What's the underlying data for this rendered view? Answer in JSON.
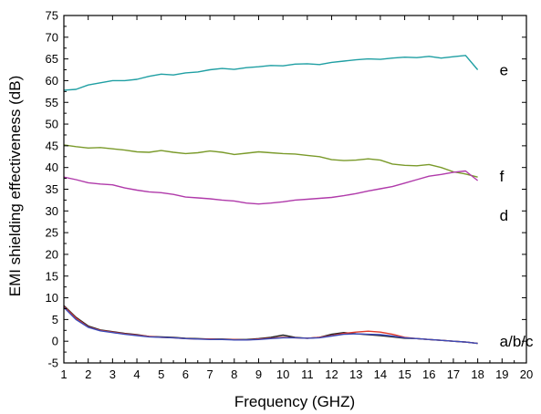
{
  "chart_data": {
    "type": "line",
    "xlabel": "Frequency (GHZ)",
    "ylabel": "EMI shielding effectiveness (dB)",
    "xlim": [
      1,
      20
    ],
    "ylim": [
      -5,
      75
    ],
    "xticks": [
      1,
      2,
      3,
      4,
      5,
      6,
      7,
      8,
      9,
      10,
      11,
      12,
      13,
      14,
      15,
      16,
      17,
      18,
      19,
      20
    ],
    "yticks": [
      -5,
      0,
      5,
      10,
      15,
      20,
      25,
      30,
      35,
      40,
      45,
      50,
      55,
      60,
      65,
      70,
      75
    ],
    "grid": false,
    "colors": {
      "e": "#1f9fa3",
      "f": "#7a9a2a",
      "d": "#b03aaa",
      "a": "#202020",
      "b": "#e03a2a",
      "c": "#3a4ab8"
    },
    "series": [
      {
        "name": "e",
        "x": [
          1,
          1.5,
          2,
          2.5,
          3,
          3.5,
          4,
          4.5,
          5,
          5.5,
          6,
          6.5,
          7,
          7.5,
          8,
          8.5,
          9,
          9.5,
          10,
          10.5,
          11,
          11.5,
          12,
          12.5,
          13,
          13.5,
          14,
          14.5,
          15,
          15.5,
          16,
          16.5,
          17,
          17.5,
          18
        ],
        "y": [
          57.8,
          58,
          59,
          59.5,
          60,
          60,
          60.3,
          61,
          61.5,
          61.3,
          61.8,
          62,
          62.5,
          62.8,
          62.6,
          63,
          63.2,
          63.5,
          63.4,
          63.8,
          63.9,
          63.7,
          64.2,
          64.5,
          64.8,
          65,
          64.9,
          65.2,
          65.4,
          65.3,
          65.6,
          65.2,
          65.5,
          65.8,
          62.5
        ]
      },
      {
        "name": "f",
        "x": [
          1,
          1.5,
          2,
          2.5,
          3,
          3.5,
          4,
          4.5,
          5,
          5.5,
          6,
          6.5,
          7,
          7.5,
          8,
          8.5,
          9,
          9.5,
          10,
          10.5,
          11,
          11.5,
          12,
          12.5,
          13,
          13.5,
          14,
          14.5,
          15,
          15.5,
          16,
          16.5,
          17,
          17.5,
          18
        ],
        "y": [
          45.2,
          44.8,
          44.5,
          44.6,
          44.3,
          44,
          43.6,
          43.5,
          43.9,
          43.5,
          43.2,
          43.4,
          43.8,
          43.5,
          43,
          43.3,
          43.6,
          43.4,
          43.2,
          43.1,
          42.8,
          42.5,
          41.8,
          41.6,
          41.7,
          42,
          41.7,
          40.8,
          40.5,
          40.4,
          40.7,
          40,
          39,
          38.5,
          37.8
        ]
      },
      {
        "name": "d",
        "x": [
          1,
          1.5,
          2,
          2.5,
          3,
          3.5,
          4,
          4.5,
          5,
          5.5,
          6,
          6.5,
          7,
          7.5,
          8,
          8.5,
          9,
          9.5,
          10,
          10.5,
          11,
          11.5,
          12,
          12.5,
          13,
          13.5,
          14,
          14.5,
          15,
          15.5,
          16,
          16.5,
          17,
          17.5,
          18
        ],
        "y": [
          37.8,
          37.2,
          36.5,
          36.2,
          36,
          35.3,
          34.8,
          34.4,
          34.2,
          33.8,
          33.2,
          33,
          32.8,
          32.5,
          32.3,
          31.8,
          31.6,
          31.8,
          32.1,
          32.5,
          32.7,
          32.9,
          33.1,
          33.5,
          34,
          34.6,
          35.1,
          35.6,
          36.4,
          37.2,
          38,
          38.4,
          38.9,
          39.2,
          37
        ]
      },
      {
        "name": "a",
        "x": [
          1,
          1.5,
          2,
          2.5,
          3,
          3.5,
          4,
          4.5,
          5,
          5.5,
          6,
          6.5,
          7,
          7.5,
          8,
          8.5,
          9,
          9.5,
          10,
          10.5,
          11,
          11.5,
          12,
          12.5,
          13,
          13.5,
          14,
          14.5,
          15,
          15.5,
          16,
          16.5,
          17,
          17.5,
          18
        ],
        "y": [
          8.2,
          5.5,
          3.5,
          2.6,
          2.2,
          1.8,
          1.5,
          1.1,
          1,
          0.9,
          0.7,
          0.6,
          0.5,
          0.5,
          0.4,
          0.4,
          0.6,
          0.9,
          1.4,
          0.9,
          0.7,
          0.9,
          1.6,
          2,
          1.7,
          1.5,
          1.3,
          1.0,
          0.7,
          0.6,
          0.4,
          0.2,
          0,
          -0.2,
          -0.5
        ]
      },
      {
        "name": "b",
        "x": [
          1,
          1.5,
          2,
          2.5,
          3,
          3.5,
          4,
          4.5,
          5,
          5.5,
          6,
          6.5,
          7,
          7.5,
          8,
          8.5,
          9,
          9.5,
          10,
          10.5,
          11,
          11.5,
          12,
          12.5,
          13,
          13.5,
          14,
          14.5,
          15,
          15.5,
          16,
          16.5,
          17,
          17.5,
          18
        ],
        "y": [
          8,
          5.3,
          3.3,
          2.5,
          2.1,
          1.7,
          1.4,
          1.1,
          0.9,
          0.8,
          0.6,
          0.5,
          0.5,
          0.4,
          0.4,
          0.3,
          0.5,
          0.7,
          0.9,
          0.8,
          0.7,
          0.9,
          1.3,
          1.8,
          2.1,
          2.3,
          2.1,
          1.6,
          0.9,
          0.6,
          0.4,
          0.2,
          0,
          -0.2,
          -0.5
        ]
      },
      {
        "name": "c",
        "x": [
          1,
          1.5,
          2,
          2.5,
          3,
          3.5,
          4,
          4.5,
          5,
          5.5,
          6,
          6.5,
          7,
          7.5,
          8,
          8.5,
          9,
          9.5,
          10,
          10.5,
          11,
          11.5,
          12,
          12.5,
          13,
          13.5,
          14,
          14.5,
          15,
          15.5,
          16,
          16.5,
          17,
          17.5,
          18
        ],
        "y": [
          7.8,
          5,
          3.2,
          2.4,
          2,
          1.6,
          1.3,
          1,
          0.9,
          0.8,
          0.6,
          0.5,
          0.4,
          0.4,
          0.3,
          0.3,
          0.4,
          0.6,
          0.8,
          0.8,
          0.7,
          0.8,
          1.2,
          1.6,
          1.7,
          1.6,
          1.5,
          1.2,
          0.8,
          0.6,
          0.4,
          0.2,
          0,
          -0.2,
          -0.5
        ]
      }
    ],
    "series_labels": [
      {
        "text": "e",
        "x": 18.9,
        "y": 62.5
      },
      {
        "text": "f",
        "x": 18.9,
        "y": 38
      },
      {
        "text": "d",
        "x": 18.9,
        "y": 29
      },
      {
        "text": "a/b/c",
        "x": 18.9,
        "y": 0
      }
    ]
  }
}
